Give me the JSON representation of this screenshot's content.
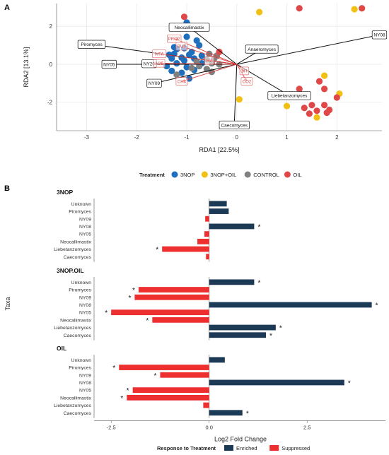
{
  "figure": {
    "panel_a_label": "A",
    "panel_b_label": "B"
  },
  "chart_data": [
    {
      "type": "scatter",
      "panel": "A",
      "title": "",
      "xlabel": "RDA1 [22.5%]",
      "ylabel": "RDA2 [13.1%]",
      "xlim": [
        -3.6,
        2.9
      ],
      "ylim": [
        -3.5,
        3.2
      ],
      "xticks": [
        -3,
        -2,
        -1,
        0,
        1,
        2
      ],
      "yticks": [
        -2,
        0,
        2
      ],
      "grid": true,
      "legend": {
        "position": "bottom",
        "title": "Treatment",
        "entries": [
          {
            "name": "3NOP",
            "color": "#1f6fbf"
          },
          {
            "name": "3NOP+OIL",
            "color": "#f2c014"
          },
          {
            "name": "CONTROL",
            "color": "#808080"
          },
          {
            "name": "OIL",
            "color": "#e04848"
          }
        ]
      },
      "series": [
        {
          "name": "3NOP",
          "color": "#1f6fbf",
          "points": [
            [
              -1.0,
              2.2
            ],
            [
              -0.8,
              1.25
            ],
            [
              -1.0,
              1.45
            ],
            [
              -0.75,
              1.0
            ],
            [
              -1.05,
              0.85
            ],
            [
              -1.2,
              0.8
            ],
            [
              -0.9,
              0.65
            ],
            [
              -1.25,
              0.55
            ],
            [
              -1.35,
              0.5
            ],
            [
              -0.95,
              0.5
            ],
            [
              -0.7,
              0.45
            ],
            [
              -1.1,
              0.35
            ],
            [
              -0.85,
              0.3
            ],
            [
              -1.3,
              0.3
            ],
            [
              -1.05,
              0.2
            ],
            [
              -0.7,
              0.05
            ],
            [
              -1.2,
              0.05
            ],
            [
              -1.4,
              -0.1
            ],
            [
              -1.0,
              -0.15
            ],
            [
              -0.85,
              -0.3
            ],
            [
              -1.3,
              -0.35
            ],
            [
              -1.1,
              -0.45
            ],
            [
              -0.95,
              -0.75
            ],
            [
              -1.25,
              0.9
            ]
          ]
        },
        {
          "name": "3NOP+OIL",
          "color": "#f2c014",
          "points": [
            [
              0.45,
              2.75
            ],
            [
              2.35,
              2.9
            ],
            [
              1.75,
              -0.6
            ],
            [
              2.05,
              -1.55
            ],
            [
              1.0,
              -2.2
            ],
            [
              0.05,
              -1.85
            ],
            [
              1.6,
              -2.8
            ]
          ]
        },
        {
          "name": "CONTROL",
          "color": "#808080",
          "points": [
            [
              -0.55,
              0.55
            ],
            [
              -0.6,
              0.25
            ],
            [
              -0.45,
              0.3
            ],
            [
              -0.5,
              0.05
            ],
            [
              -0.75,
              -0.1
            ],
            [
              -0.35,
              0.0
            ],
            [
              -0.6,
              -0.25
            ],
            [
              -0.9,
              -0.2
            ],
            [
              -0.8,
              0.15
            ],
            [
              -0.5,
              -0.4
            ],
            [
              -1.2,
              -0.55
            ],
            [
              -0.4,
              0.45
            ]
          ]
        },
        {
          "name": "OIL",
          "color": "#e04848",
          "points": [
            [
              -1.05,
              2.5
            ],
            [
              1.25,
              2.95
            ],
            [
              2.5,
              2.95
            ],
            [
              -0.35,
              0.65
            ],
            [
              1.25,
              -1.3
            ],
            [
              1.65,
              -0.9
            ],
            [
              1.75,
              -1.3
            ],
            [
              1.35,
              -2.3
            ],
            [
              1.5,
              -2.15
            ],
            [
              1.6,
              -2.45
            ],
            [
              1.75,
              -2.15
            ],
            [
              1.85,
              -2.4
            ],
            [
              2.0,
              -1.75
            ],
            [
              1.8,
              -2.55
            ],
            [
              1.45,
              -2.6
            ]
          ]
        }
      ],
      "arrows": [
        {
          "label": "NY08",
          "end": [
            2.85,
            1.55
          ],
          "box": "black"
        },
        {
          "label": "Neocallimastix",
          "end": [
            -0.95,
            1.95
          ],
          "box": "black"
        },
        {
          "label": "Anaeromyces",
          "end": [
            0.5,
            0.8
          ],
          "box": "black"
        },
        {
          "label": "Piromyces",
          "end": [
            -2.9,
            1.05
          ],
          "box": "black"
        },
        {
          "label": "NY05",
          "end": [
            -2.55,
            0.0
          ],
          "box": "black"
        },
        {
          "label": "NY20",
          "end": [
            -1.75,
            0.03
          ],
          "box": "black"
        },
        {
          "label": "NY09",
          "end": [
            -1.65,
            -1.0
          ],
          "box": "black"
        },
        {
          "label": "Liebetanzomyces",
          "end": [
            1.05,
            -1.65
          ],
          "box": "black"
        },
        {
          "label": "Caecomyces",
          "end": [
            -0.05,
            -3.2
          ],
          "box": "black"
        },
        {
          "label": "PROP",
          "end": [
            -1.25,
            1.35
          ],
          "box": "red"
        },
        {
          "label": "BUT",
          "end": [
            -1.1,
            0.95
          ],
          "box": "red"
        },
        {
          "label": "IVFA",
          "end": [
            -1.55,
            0.55
          ],
          "box": "red"
        },
        {
          "label": "ACE",
          "end": [
            -1.55,
            0.05
          ],
          "box": "red"
        },
        {
          "label": "H2",
          "end": [
            -0.55,
            0.2
          ],
          "box": "red"
        },
        {
          "label": "CH4",
          "end": [
            -1.1,
            -0.9
          ],
          "box": "red"
        },
        {
          "label": "pH",
          "end": [
            0.15,
            -0.35
          ],
          "box": "red"
        },
        {
          "label": "CO2",
          "end": [
            0.2,
            -0.9
          ],
          "box": "red"
        }
      ]
    },
    {
      "type": "bar",
      "panel": "B",
      "orientation": "horizontal",
      "ylabel": "Taxa",
      "xlabel": "Log2 Fold Change",
      "xlim": [
        -2.9,
        4.5
      ],
      "xticks": [
        -2.5,
        0.0,
        2.5
      ],
      "grid": false,
      "categories": [
        "Unknown",
        "Piromyces",
        "NY09",
        "NY08",
        "NY05",
        "Neocallimastix",
        "Liebetanzomyces",
        "Caecomyces"
      ],
      "legend": {
        "position": "bottom",
        "title": "Response to Treatment",
        "entries": [
          {
            "name": "Enriched",
            "color": "#1c3a56"
          },
          {
            "name": "Suppressed",
            "color": "#ee2f2f"
          }
        ]
      },
      "facets": [
        {
          "name": "3NOP",
          "values": [
            0.45,
            0.5,
            -0.1,
            1.15,
            -0.12,
            -0.3,
            -1.2,
            -0.08
          ],
          "significant": [
            false,
            false,
            false,
            true,
            false,
            false,
            true,
            false
          ]
        },
        {
          "name": "3NOP.OIL",
          "values": [
            1.15,
            -1.8,
            -1.9,
            4.15,
            -2.5,
            -1.45,
            1.7,
            1.45
          ],
          "significant": [
            true,
            true,
            true,
            true,
            true,
            true,
            true,
            true
          ]
        },
        {
          "name": "OIL",
          "values": [
            0.4,
            -2.3,
            -1.25,
            3.45,
            -1.95,
            -2.1,
            -0.15,
            0.85
          ],
          "significant": [
            false,
            true,
            true,
            true,
            true,
            true,
            false,
            true
          ]
        }
      ]
    }
  ]
}
